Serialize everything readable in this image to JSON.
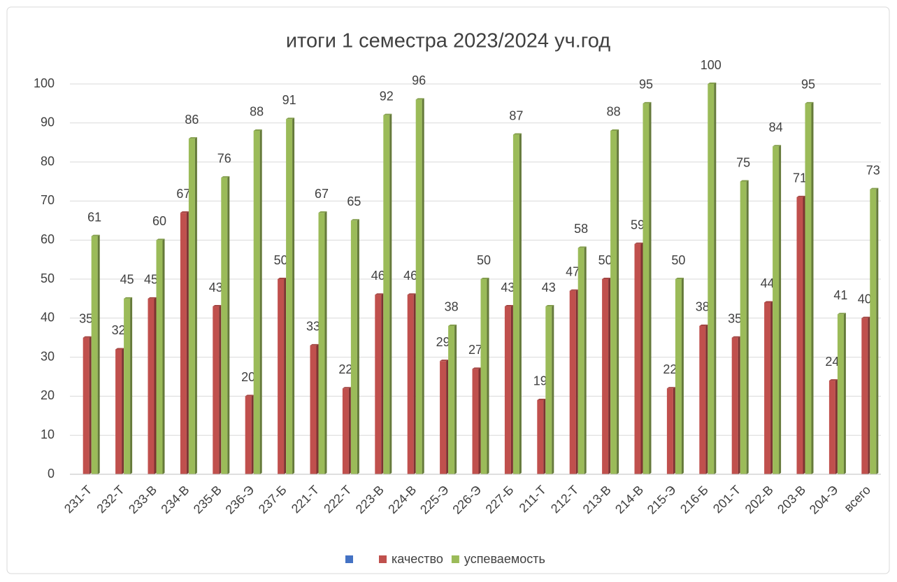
{
  "chart_data": {
    "type": "bar",
    "title": "итоги 1 семестра 2023/2024 уч.год",
    "categories": [
      "231-Т",
      "232-Т",
      "233-В",
      "234-В",
      "235-В",
      "236-Э",
      "237-Б",
      "221-Т",
      "222-Т",
      "223-В",
      "224-В",
      "225-Э",
      "226-Э",
      "227-Б",
      "211-Т",
      "212-Т",
      "213-В",
      "214-В",
      "215-Э",
      "216-Б",
      "201-Т",
      "202-В",
      "203-В",
      "204-Э",
      "всего"
    ],
    "series": [
      {
        "color": "#4472c4",
        "values": [
          null,
          null,
          null,
          null,
          null,
          null,
          null,
          null,
          null,
          null,
          null,
          null,
          null,
          null,
          null,
          null,
          null,
          null,
          null,
          null,
          null,
          null,
          null,
          null,
          null
        ]
      },
      {
        "name": "качество",
        "color": "#c0504d",
        "values": [
          35,
          32,
          45,
          67,
          43,
          20,
          50,
          33,
          22,
          46,
          46,
          29,
          27,
          43,
          19,
          47,
          50,
          59,
          22,
          38,
          35,
          44,
          71,
          24,
          40
        ]
      },
      {
        "name": "успеваемость",
        "color": "#9bbb59",
        "values": [
          61,
          45,
          60,
          86,
          76,
          88,
          91,
          67,
          65,
          92,
          96,
          38,
          50,
          87,
          43,
          58,
          88,
          95,
          50,
          100,
          75,
          84,
          95,
          41,
          73
        ]
      }
    ],
    "ylim": [
      0,
      100
    ],
    "yticks": [
      0,
      10,
      20,
      30,
      40,
      50,
      60,
      70,
      80,
      90,
      100
    ],
    "grid": true,
    "legend": "bottom"
  }
}
